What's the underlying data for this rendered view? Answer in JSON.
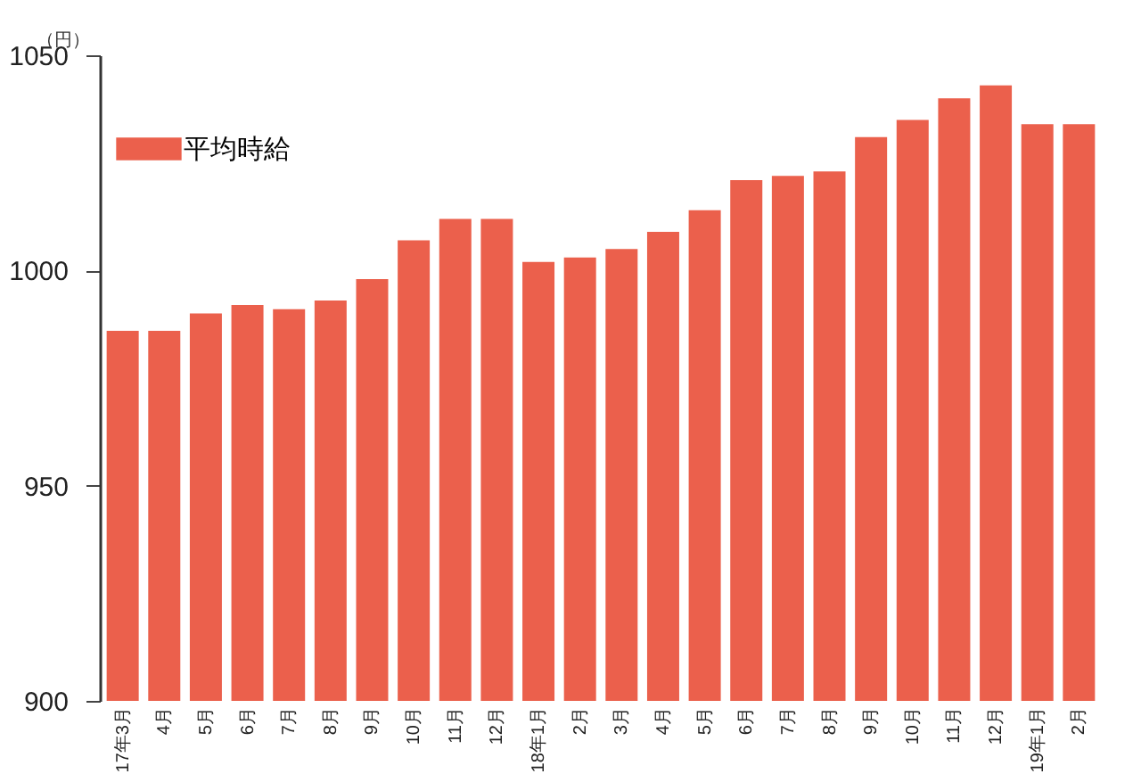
{
  "chart_data": {
    "type": "bar",
    "ylabel": "（円）",
    "categories": [
      "17年3月",
      "4月",
      "5月",
      "6月",
      "7月",
      "8月",
      "9月",
      "10月",
      "11月",
      "12月",
      "18年1月",
      "2月",
      "3月",
      "4月",
      "5月",
      "6月",
      "7月",
      "8月",
      "9月",
      "10月",
      "11月",
      "12月",
      "19年1月",
      "2月"
    ],
    "series": [
      {
        "name": "平均時給",
        "color": "#eb604c",
        "values": [
          986,
          986,
          990,
          992,
          991,
          993,
          998,
          1007,
          1012,
          1012,
          1002,
          1003,
          1005,
          1009,
          1014,
          1021,
          1022,
          1023,
          1031,
          1035,
          1040,
          1043,
          1034,
          1034
        ]
      }
    ],
    "ylim": [
      900,
      1050
    ],
    "yticks": [
      900,
      950,
      1000,
      1050
    ],
    "grid": false,
    "legend": "top left"
  }
}
